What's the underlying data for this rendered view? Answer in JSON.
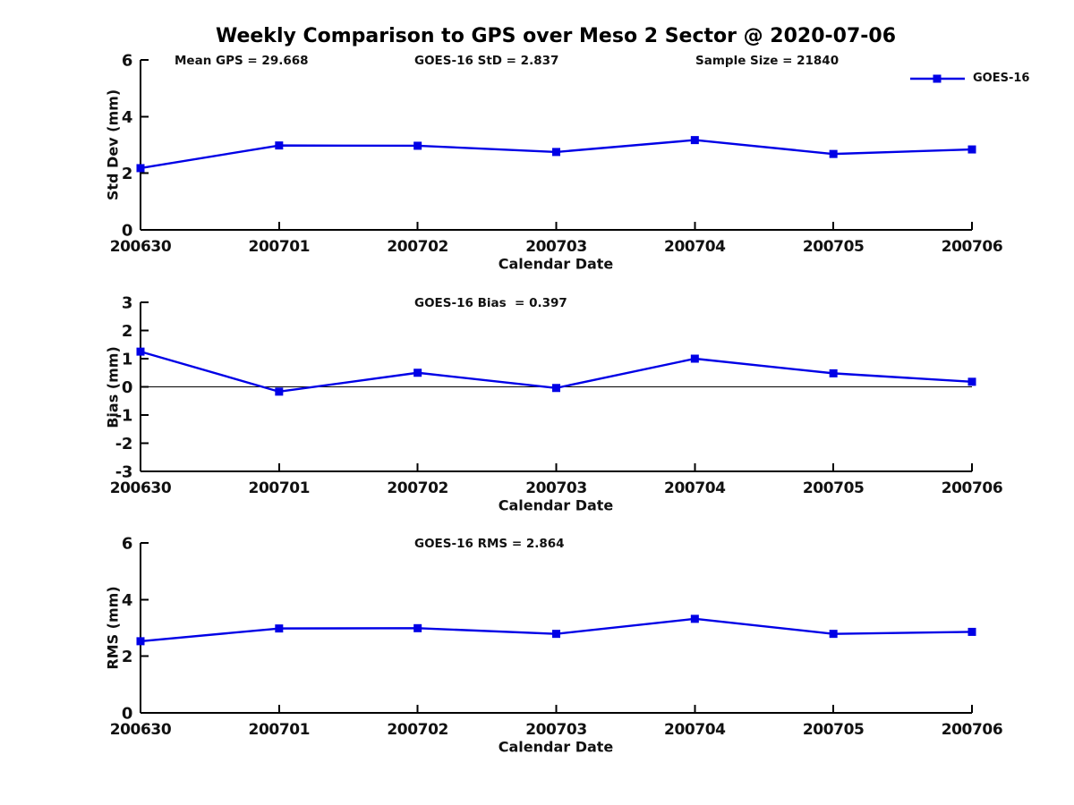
{
  "title": "Weekly Comparison to GPS over Meso 2 Sector @ 2020-07-06",
  "colors": {
    "line": "#0000e6",
    "axis": "#000000",
    "text": "#111111"
  },
  "chart_data": [
    {
      "type": "line",
      "name": "std-dev",
      "categories": [
        "200630",
        "200701",
        "200702",
        "200703",
        "200704",
        "200705",
        "200706"
      ],
      "series": [
        {
          "name": "GOES-16",
          "values": [
            2.18,
            2.98,
            2.97,
            2.75,
            3.17,
            2.68,
            2.84
          ]
        }
      ],
      "ylabel": "Std Dev (mm)",
      "xlabel": "Calendar Date",
      "ylim": [
        0,
        6
      ],
      "yticks": [
        0,
        2,
        4,
        6
      ],
      "grid": false,
      "legend_position": "top-right",
      "annotations": [
        "Mean GPS = 29.668",
        "GOES-16 StD = 2.837",
        "Sample Size = 21840"
      ],
      "marker": "square"
    },
    {
      "type": "line",
      "name": "bias",
      "categories": [
        "200630",
        "200701",
        "200702",
        "200703",
        "200704",
        "200705",
        "200706"
      ],
      "series": [
        {
          "name": "GOES-16",
          "values": [
            1.25,
            -0.17,
            0.5,
            -0.04,
            1.0,
            0.48,
            0.18
          ]
        }
      ],
      "ylabel": "Bias (mm)",
      "xlabel": "Calendar Date",
      "ylim": [
        -3,
        3
      ],
      "yticks": [
        -3,
        -2,
        -1,
        0,
        1,
        2,
        3
      ],
      "zero_line": true,
      "grid": false,
      "annotations": [
        "GOES-16 Bias  = 0.397"
      ],
      "marker": "square"
    },
    {
      "type": "line",
      "name": "rms",
      "categories": [
        "200630",
        "200701",
        "200702",
        "200703",
        "200704",
        "200705",
        "200706"
      ],
      "series": [
        {
          "name": "GOES-16",
          "values": [
            2.53,
            2.98,
            2.99,
            2.79,
            3.32,
            2.79,
            2.86
          ]
        }
      ],
      "ylabel": "RMS (mm)",
      "xlabel": "Calendar Date",
      "ylim": [
        0,
        6
      ],
      "yticks": [
        0,
        2,
        4,
        6
      ],
      "grid": false,
      "annotations": [
        "GOES-16 RMS = 2.864"
      ],
      "marker": "square"
    }
  ]
}
